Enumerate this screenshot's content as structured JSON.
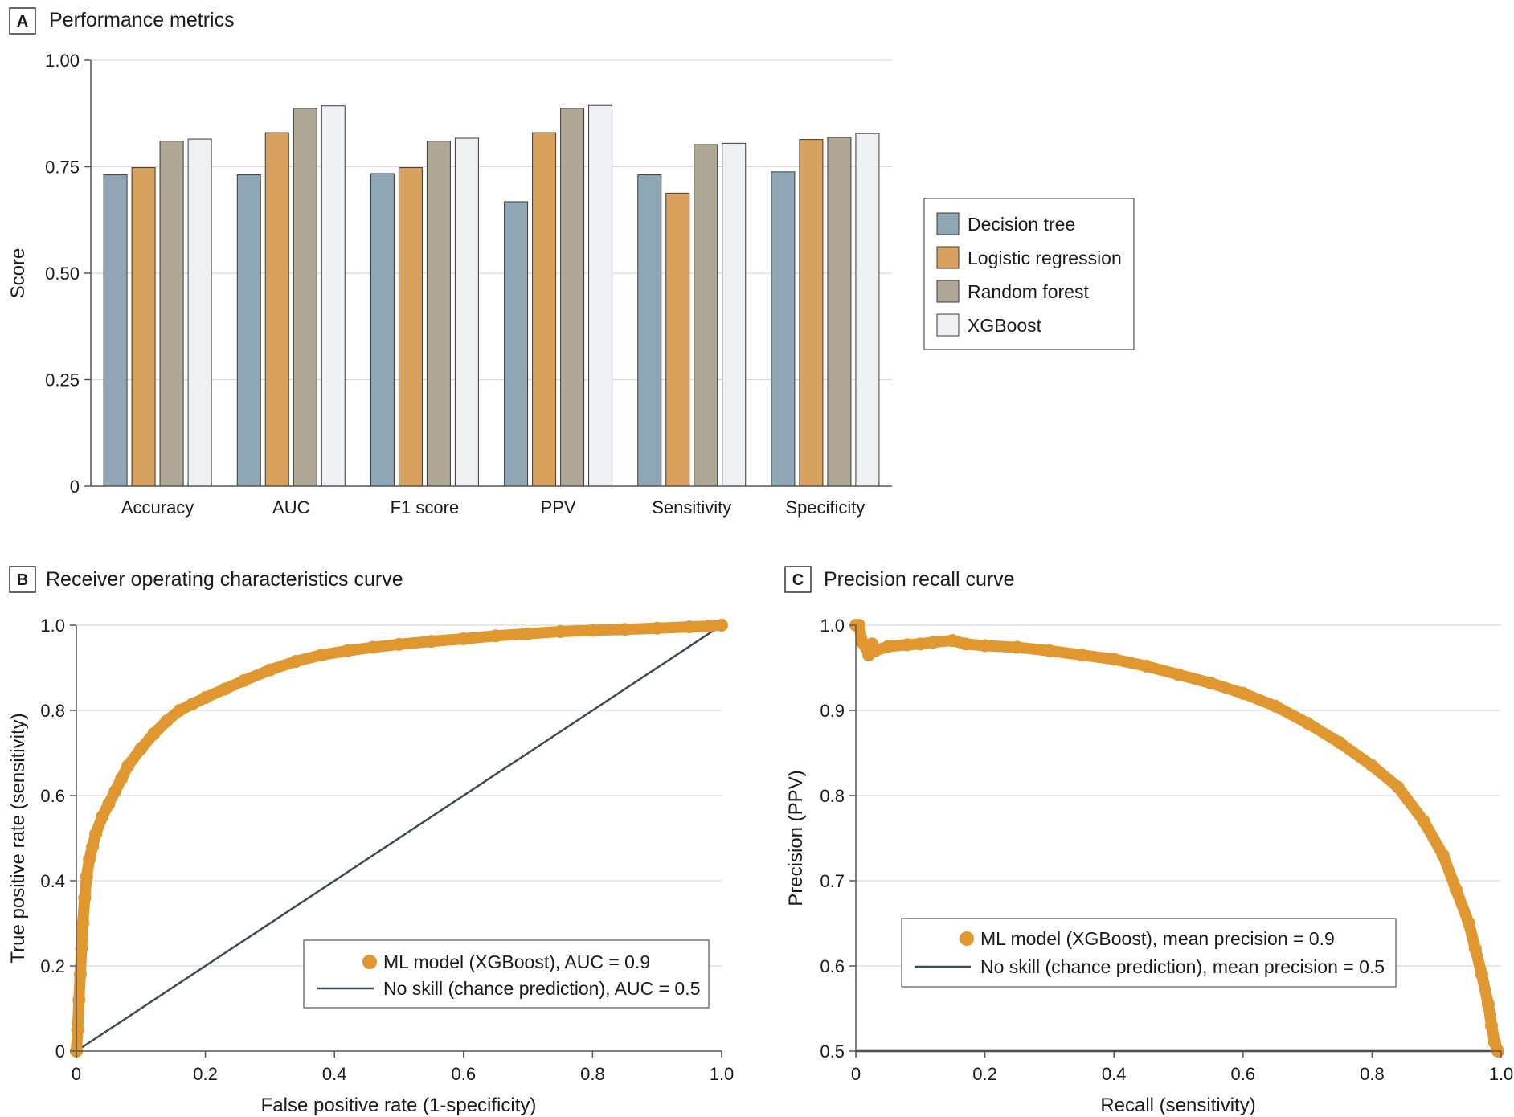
{
  "chart_data": [
    {
      "panel_label": "A",
      "title": "Performance metrics",
      "type": "bar",
      "ylabel": "Score",
      "xlabel": "",
      "ylim": [
        0,
        1
      ],
      "yticks": [
        "0",
        "0.25",
        "0.50",
        "0.75",
        "1.00"
      ],
      "categories": [
        "Accuracy",
        "AUC",
        "F1 score",
        "PPV",
        "Sensitivity",
        "Specificity"
      ],
      "series": [
        {
          "name": "Decision tree",
          "color": "#8fa7b4",
          "values": [
            0.731,
            0.731,
            0.734,
            0.668,
            0.731,
            0.738
          ]
        },
        {
          "name": "Logistic regression",
          "color": "#d9a15e",
          "values": [
            0.748,
            0.83,
            0.748,
            0.83,
            0.688,
            0.814
          ]
        },
        {
          "name": "Random forest",
          "color": "#b0a896",
          "values": [
            0.81,
            0.887,
            0.81,
            0.887,
            0.802,
            0.819
          ]
        },
        {
          "name": "XGBoost",
          "color": "#eef0f4",
          "values": [
            0.815,
            0.893,
            0.817,
            0.894,
            0.805,
            0.828
          ]
        }
      ]
    },
    {
      "panel_label": "B",
      "title": "Receiver operating characteristics curve",
      "type": "line",
      "xlabel": "False positive rate (1-specificity)",
      "ylabel": "True positive rate (sensitivity)",
      "xlim": [
        0,
        1
      ],
      "ylim": [
        0,
        1
      ],
      "xticks": [
        "0",
        "0.2",
        "0.4",
        "0.6",
        "0.8",
        "1.0"
      ],
      "yticks": [
        "0",
        "0.2",
        "0.4",
        "0.6",
        "0.8",
        "1.0"
      ],
      "series": [
        {
          "name": "ML model (XGBoost), AUC = 0.9",
          "color": "#e0972f",
          "style": "dots",
          "x": [
            0,
            0.002,
            0.004,
            0.006,
            0.008,
            0.01,
            0.013,
            0.016,
            0.02,
            0.025,
            0.03,
            0.04,
            0.05,
            0.06,
            0.07,
            0.08,
            0.1,
            0.12,
            0.14,
            0.16,
            0.18,
            0.2,
            0.23,
            0.26,
            0.3,
            0.34,
            0.38,
            0.42,
            0.46,
            0.5,
            0.55,
            0.6,
            0.65,
            0.7,
            0.75,
            0.8,
            0.85,
            0.9,
            0.95,
            0.98,
            1.0
          ],
          "y": [
            0,
            0.05,
            0.12,
            0.18,
            0.24,
            0.3,
            0.36,
            0.41,
            0.45,
            0.48,
            0.51,
            0.55,
            0.58,
            0.61,
            0.64,
            0.67,
            0.71,
            0.745,
            0.775,
            0.8,
            0.815,
            0.83,
            0.85,
            0.87,
            0.895,
            0.915,
            0.93,
            0.94,
            0.948,
            0.955,
            0.962,
            0.968,
            0.975,
            0.98,
            0.985,
            0.988,
            0.99,
            0.993,
            0.996,
            0.998,
            1.0
          ]
        },
        {
          "name": "No skill (chance prediction), AUC = 0.5",
          "color": "#3c4b57",
          "style": "line",
          "x": [
            0,
            1
          ],
          "y": [
            0,
            1
          ]
        }
      ],
      "legend_position": "bottom-right"
    },
    {
      "panel_label": "C",
      "title": "Precision recall curve",
      "type": "line",
      "xlabel": "Recall (sensitivity)",
      "ylabel": "Precision (PPV)",
      "xlim": [
        0,
        1
      ],
      "ylim": [
        0.5,
        1
      ],
      "xticks": [
        "0",
        "0.2",
        "0.4",
        "0.6",
        "0.8",
        "1.0"
      ],
      "yticks": [
        "0.5",
        "0.6",
        "0.7",
        "0.8",
        "0.9",
        "1.0"
      ],
      "series": [
        {
          "name": "ML model (XGBoost), mean precision = 0.9",
          "color": "#e0972f",
          "style": "dots",
          "x": [
            0,
            0.005,
            0.01,
            0.015,
            0.02,
            0.025,
            0.03,
            0.05,
            0.08,
            0.1,
            0.12,
            0.15,
            0.17,
            0.2,
            0.25,
            0.3,
            0.35,
            0.4,
            0.45,
            0.5,
            0.55,
            0.6,
            0.65,
            0.7,
            0.75,
            0.8,
            0.84,
            0.88,
            0.91,
            0.93,
            0.95,
            0.96,
            0.97,
            0.98,
            0.985,
            0.99,
            0.995
          ],
          "y": [
            1.0,
            1.0,
            0.98,
            0.975,
            0.965,
            0.978,
            0.97,
            0.975,
            0.977,
            0.978,
            0.98,
            0.982,
            0.978,
            0.976,
            0.974,
            0.97,
            0.965,
            0.96,
            0.952,
            0.942,
            0.932,
            0.92,
            0.905,
            0.885,
            0.862,
            0.835,
            0.81,
            0.77,
            0.73,
            0.69,
            0.65,
            0.62,
            0.59,
            0.555,
            0.53,
            0.51,
            0.5
          ]
        },
        {
          "name": "No skill (chance prediction), mean precision = 0.5",
          "color": "#3c4b57",
          "style": "line",
          "x": [
            0,
            1
          ],
          "y": [
            0.5,
            0.5
          ]
        }
      ],
      "legend_position": "center-left"
    }
  ]
}
